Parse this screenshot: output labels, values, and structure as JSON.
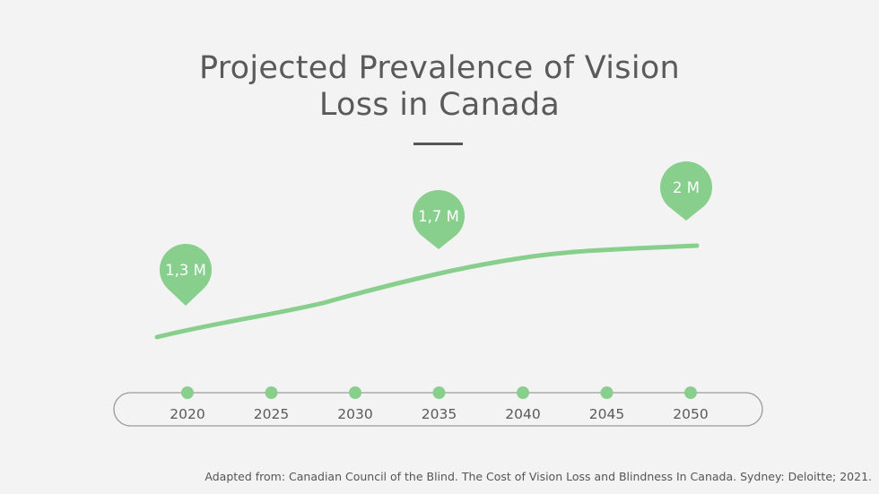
{
  "chart_data": {
    "type": "line",
    "title": "Projected Prevalence of Vision Loss in Canada",
    "title_lines": [
      "Projected Prevalence of Vision",
      "Loss in Canada"
    ],
    "categories": [
      "2020",
      "2025",
      "2030",
      "2035",
      "2040",
      "2045",
      "2050"
    ],
    "labeled_points": [
      {
        "x": "2020",
        "value": 1.3,
        "label": "1,3 M"
      },
      {
        "x": "2035",
        "value": 1.7,
        "label": "1,7 M"
      },
      {
        "x": "2050",
        "value": 2.0,
        "label": "2 M"
      }
    ],
    "unit": "M",
    "grid": false,
    "colors": {
      "line": "#88cf8e",
      "marker": "#88cf8e",
      "text": "#5a5a5a",
      "axis_border": "#9a9a9a"
    }
  },
  "source": "Adapted from: Canadian Council of the Blind. The Cost of Vision Loss and Blindness In Canada. Sydney: Deloitte; 2021."
}
